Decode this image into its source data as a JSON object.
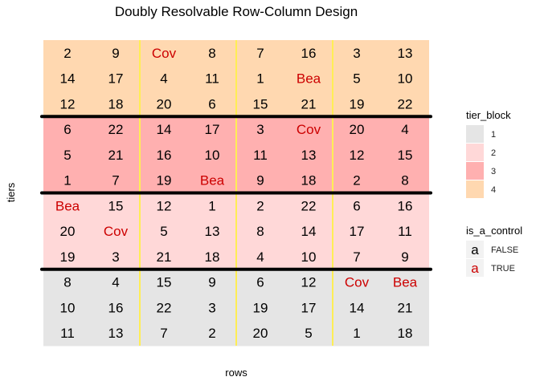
{
  "chart_data": {
    "type": "table",
    "title": "Doubly Resolvable Row-Column Design",
    "xlabel": "rows",
    "ylabel": "tiers",
    "n_rows": 12,
    "n_cols": 8,
    "col_groups": [
      2,
      2,
      2,
      2
    ],
    "row_groups": [
      3,
      3,
      3,
      3
    ],
    "cells": [
      [
        "2",
        "9",
        "Cov",
        "8",
        "7",
        "16",
        "3",
        "13"
      ],
      [
        "14",
        "17",
        "4",
        "11",
        "1",
        "Bea",
        "5",
        "10"
      ],
      [
        "12",
        "18",
        "20",
        "6",
        "15",
        "21",
        "19",
        "22"
      ],
      [
        "6",
        "22",
        "14",
        "17",
        "3",
        "Cov",
        "20",
        "4"
      ],
      [
        "5",
        "21",
        "16",
        "10",
        "11",
        "13",
        "12",
        "15"
      ],
      [
        "1",
        "7",
        "19",
        "Bea",
        "9",
        "18",
        "2",
        "8"
      ],
      [
        "Bea",
        "15",
        "12",
        "1",
        "2",
        "22",
        "6",
        "16"
      ],
      [
        "20",
        "Cov",
        "5",
        "13",
        "8",
        "14",
        "17",
        "11"
      ],
      [
        "19",
        "3",
        "21",
        "18",
        "4",
        "10",
        "7",
        "9"
      ],
      [
        "8",
        "4",
        "15",
        "9",
        "6",
        "12",
        "Cov",
        "Bea"
      ],
      [
        "10",
        "16",
        "22",
        "3",
        "19",
        "17",
        "14",
        "21"
      ],
      [
        "11",
        "13",
        "7",
        "2",
        "20",
        "5",
        "1",
        "18"
      ]
    ],
    "row_tier_block": [
      4,
      4,
      4,
      3,
      3,
      3,
      2,
      2,
      2,
      1,
      1,
      1
    ],
    "controls": [
      "Cov",
      "Bea"
    ],
    "tier_block_colors": {
      "1": "#e5e5e5",
      "2": "#ffd8d8",
      "3": "#ffb0b0",
      "4": "#ffd8b0"
    },
    "is_a_control_colors": {
      "FALSE": "#000000",
      "TRUE": "#cc0000"
    },
    "divider_color_horizontal": "#000000",
    "divider_color_vertical": "#ffee55",
    "legends": [
      {
        "title": "tier_block",
        "kind": "fill",
        "entries": [
          "1",
          "2",
          "3",
          "4"
        ]
      },
      {
        "title": "is_a_control",
        "kind": "text",
        "glyph": "a",
        "entries": [
          "FALSE",
          "TRUE"
        ]
      }
    ],
    "grid": false,
    "legend_position": "right"
  }
}
